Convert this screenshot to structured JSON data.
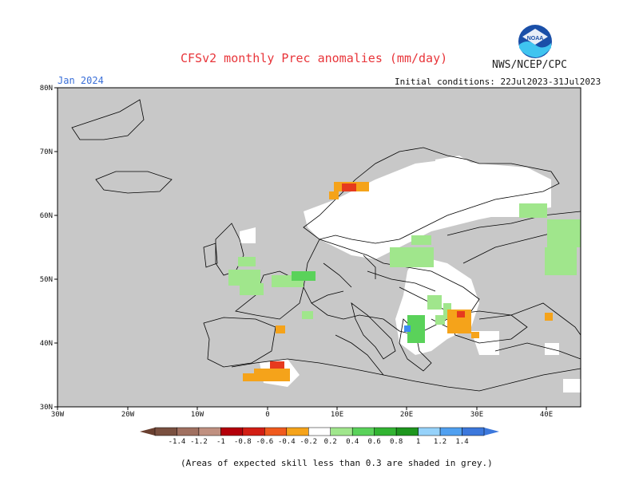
{
  "title": "CFSv2 monthly Prec anomalies (mm/day)",
  "agency": "NWS/NCEP/CPC",
  "logo_text": "NOAA",
  "month_label": "Jan 2024",
  "initial_conditions": "Initial conditions: 22Jul2023-31Jul2023",
  "footnote": "(Areas of expected skill less than 0.3 are shaded in grey.)",
  "map": {
    "lat_labels": [
      "80N",
      "70N",
      "60N",
      "50N",
      "40N",
      "30N"
    ],
    "lon_labels": [
      "30W",
      "20W",
      "10W",
      "0",
      "10E",
      "20E",
      "30E",
      "40E"
    ],
    "colors": {
      "low_skill_grey": "#c8c8c8",
      "land_outline": "#000000",
      "dry_orange": "#f5a31a",
      "dry_red": "#e63a1e",
      "wet_light_green": "#a0e68c",
      "wet_green": "#5ad25a",
      "wet_blue": "#3c8cf0"
    }
  },
  "colorbar": {
    "tick_labels": [
      "-1.4",
      "-1.2",
      "-1",
      "-0.8",
      "-0.6",
      "-0.4",
      "-0.2",
      "0.2",
      "0.4",
      "0.6",
      "0.8",
      "1",
      "1.2",
      "1.4"
    ],
    "colors": [
      "#7a5040",
      "#a07060",
      "#c09080",
      "#b4000a",
      "#d21e14",
      "#f05a1e",
      "#f5a31a",
      "#ffffff",
      "#a0e68c",
      "#5ad25a",
      "#32b432",
      "#1e961e",
      "#96d2fa",
      "#50a0f0",
      "#3c78dc"
    ]
  }
}
